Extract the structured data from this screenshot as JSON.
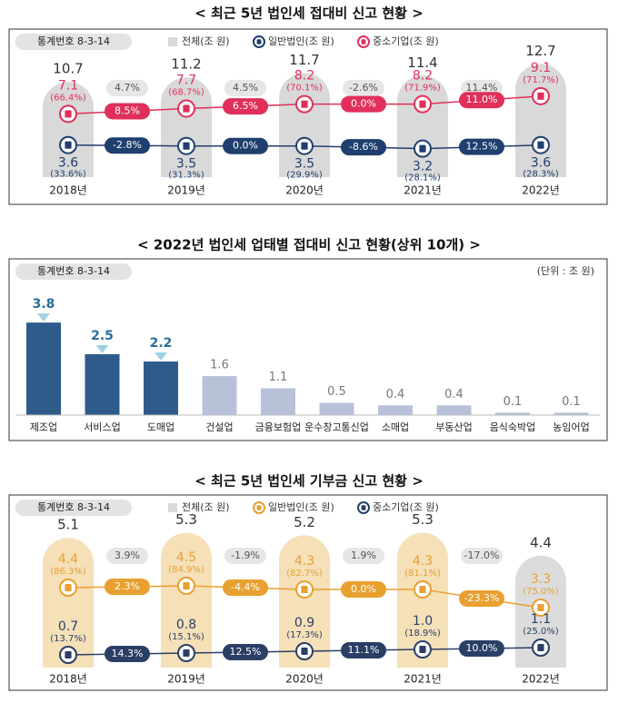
{
  "chart_data": [
    {
      "type": "pill",
      "title": "< 최근 5년 법인세 접대비 신고 현황 >",
      "source": "통계번호 8-3-14",
      "categories": [
        "2018년",
        "2019년",
        "2020년",
        "2021년",
        "2022년"
      ],
      "series": [
        {
          "name": "전체(조 원)",
          "color": "#d9d9d9",
          "text_color": "#333333",
          "values": [
            10.7,
            11.2,
            11.7,
            11.4,
            12.7
          ],
          "growth": [
            4.7,
            4.5,
            -2.6,
            11.4
          ],
          "growth_labels": [
            "4.7%",
            "4.5%",
            "-2.6%",
            "11.4%"
          ]
        },
        {
          "name": "일반법인(조 원)",
          "color": "#1f3f6e",
          "values": [
            3.6,
            3.5,
            3.5,
            3.2,
            3.6
          ],
          "shares": [
            33.6,
            31.3,
            29.9,
            28.1,
            28.3
          ],
          "share_labels": [
            "(33.6%)",
            "(31.3%)",
            "(29.9%)",
            "(28.1%)",
            "(28.3%)"
          ],
          "growth": [
            -2.8,
            0.0,
            -8.6,
            12.5
          ],
          "growth_labels": [
            "-2.8%",
            "0.0%",
            "-8.6%",
            "12.5%"
          ]
        },
        {
          "name": "중소기업(조 원)",
          "color": "#e0305a",
          "values": [
            7.1,
            7.7,
            8.2,
            8.2,
            9.1
          ],
          "shares": [
            66.4,
            68.7,
            70.1,
            71.9,
            71.7
          ],
          "share_labels": [
            "(66.4%)",
            "(68.7%)",
            "(70.1%)",
            "(71.9%)",
            "(71.7%)"
          ],
          "growth": [
            8.5,
            6.5,
            0.0,
            11.0
          ],
          "growth_labels": [
            "8.5%",
            "6.5%",
            "0.0%",
            "11.0%"
          ]
        }
      ]
    },
    {
      "type": "bar",
      "title": "< 2022년 법인세 업태별 접대비 신고 현황(상위 10개) >",
      "source": "통계번호 8-3-14",
      "unit": "(단위 : 조 원)",
      "categories": [
        "제조업",
        "서비스업",
        "도매업",
        "건설업",
        "금융보험업",
        "운수창고통신업",
        "소매업",
        "부동산업",
        "음식숙박업",
        "농임어업"
      ],
      "values": [
        3.8,
        2.5,
        2.2,
        1.6,
        1.1,
        0.5,
        0.4,
        0.4,
        0.1,
        0.1
      ],
      "colors": [
        "#2e5c8a",
        "#2e5c8a",
        "#2e5c8a",
        "#b7c1d8",
        "#b7c1d8",
        "#b7c1d8",
        "#b7c1d8",
        "#b7c1d8",
        "#b7c1d8",
        "#b7c1d8"
      ],
      "label_colors": [
        "#2a6f97",
        "#2a6f97",
        "#2a6f97",
        "#777777",
        "#777777",
        "#777777",
        "#777777",
        "#777777",
        "#777777",
        "#777777"
      ]
    },
    {
      "type": "pill",
      "title": "< 최근 5년 법인세 기부금 신고 현황 >",
      "source": "통계번호 8-3-14",
      "categories": [
        "2018년",
        "2019년",
        "2020년",
        "2021년",
        "2022년"
      ],
      "series": [
        {
          "name": "전체(조 원)",
          "color": "#d9d9d9",
          "colors": [
            "#f5e0b8",
            "#f5e0b8",
            "#f5e0b8",
            "#f5e0b8",
            "#dcdcdc"
          ],
          "text_color": "#333333",
          "values": [
            5.1,
            5.3,
            5.2,
            5.3,
            4.4
          ],
          "growth": [
            3.9,
            -1.9,
            1.9,
            -17.0
          ],
          "growth_labels": [
            "3.9%",
            "-1.9%",
            "1.9%",
            "-17.0%"
          ]
        },
        {
          "name": "일반법인(조 원)",
          "color": "#e8a030",
          "values": [
            4.4,
            4.5,
            4.3,
            4.3,
            3.3
          ],
          "shares": [
            86.3,
            84.9,
            82.7,
            81.1,
            75.0
          ],
          "share_labels": [
            "(86.3%)",
            "(84.9%)",
            "(82.7%)",
            "(81.1%)",
            "(75.0%)"
          ],
          "growth": [
            2.3,
            -4.4,
            0.0,
            -23.3
          ],
          "growth_labels": [
            "2.3%",
            "-4.4%",
            "0.0%",
            "-23.3%"
          ]
        },
        {
          "name": "중소기업(조 원)",
          "color": "#2b3f66",
          "values": [
            0.7,
            0.8,
            0.9,
            1.0,
            1.1
          ],
          "value_labels": [
            "0.7",
            "0.8",
            "0.9",
            "1.0",
            "1.1"
          ],
          "shares": [
            13.7,
            15.1,
            17.3,
            18.9,
            25.0
          ],
          "share_labels": [
            "(13.7%)",
            "(15.1%)",
            "(17.3%)",
            "(18.9%)",
            "(25.0%)"
          ],
          "growth": [
            14.3,
            12.5,
            11.1,
            10.0
          ],
          "growth_labels": [
            "14.3%",
            "12.5%",
            "11.1%",
            "10.0%"
          ]
        }
      ]
    }
  ]
}
